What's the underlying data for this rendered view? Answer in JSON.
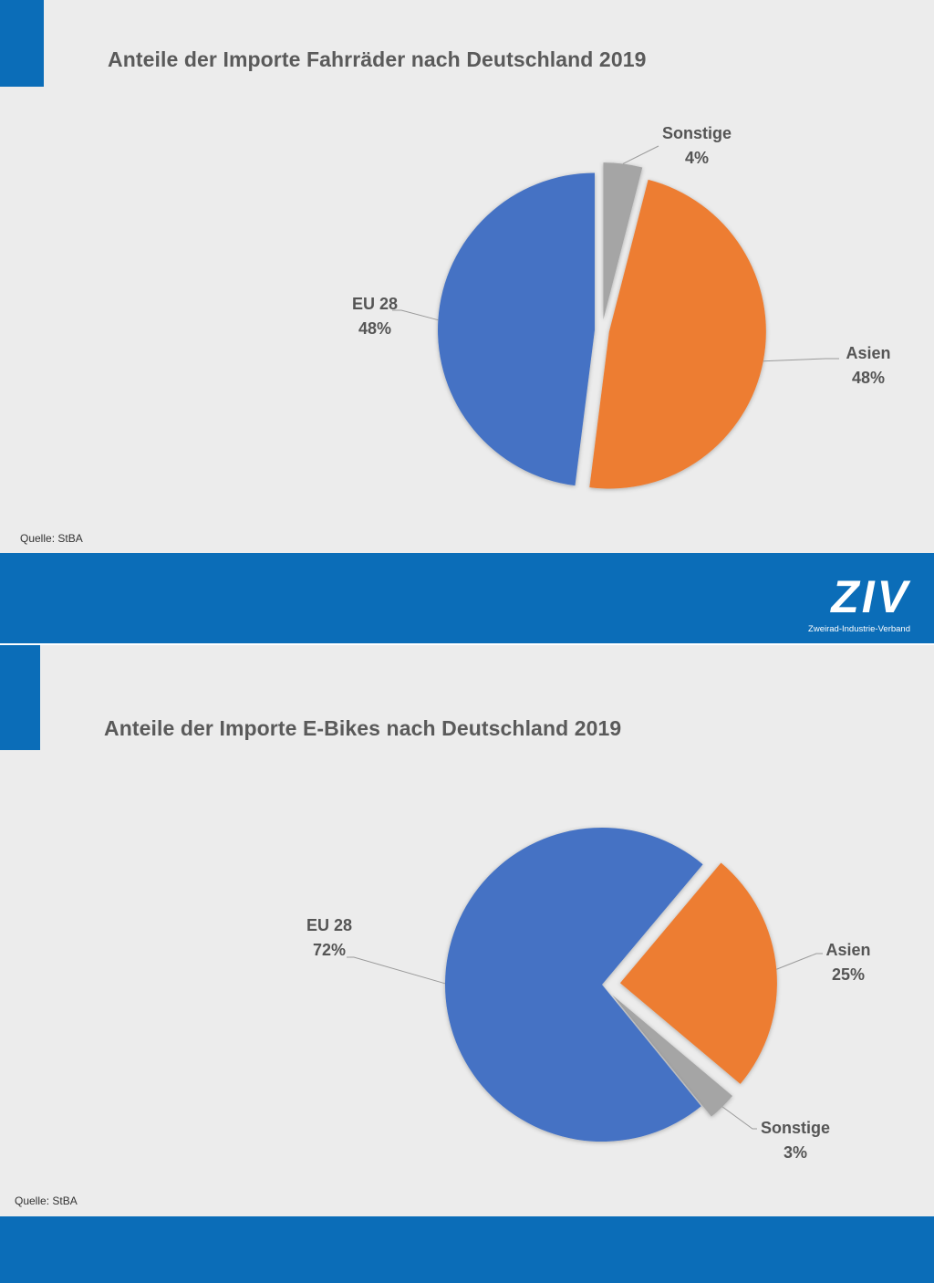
{
  "slides": [
    {
      "title": "Anteile der Importe Fahrräder nach Deutschland 2019",
      "source": "Quelle: StBA",
      "logo": {
        "text": "ZIV",
        "subtitle": "Zweirad-Industrie-Verband"
      }
    },
    {
      "title": "Anteile der Importe E-Bikes nach Deutschland 2019",
      "source": "Quelle: StBA"
    }
  ],
  "colors": {
    "accent": "#0b6db8",
    "eu": "#4472c4",
    "asien": "#ed7d31",
    "sonstige": "#a5a5a5",
    "background": "#ececec"
  },
  "chart_data": [
    {
      "type": "pie",
      "title": "Anteile der Importe Fahrräder nach Deutschland 2019",
      "slices": [
        {
          "label": "Sonstige",
          "value": 4,
          "value_label": "4%",
          "color": "#a5a5a5"
        },
        {
          "label": "Asien",
          "value": 48,
          "value_label": "48%",
          "color": "#ed7d31"
        },
        {
          "label": "EU 28",
          "value": 48,
          "value_label": "48%",
          "color": "#4472c4"
        }
      ]
    },
    {
      "type": "pie",
      "title": "Anteile der Importe E-Bikes nach Deutschland 2019",
      "slices": [
        {
          "label": "Asien",
          "value": 25,
          "value_label": "25%",
          "color": "#ed7d31"
        },
        {
          "label": "Sonstige",
          "value": 3,
          "value_label": "3%",
          "color": "#a5a5a5"
        },
        {
          "label": "EU 28",
          "value": 72,
          "value_label": "72%",
          "color": "#4472c4"
        }
      ]
    }
  ]
}
